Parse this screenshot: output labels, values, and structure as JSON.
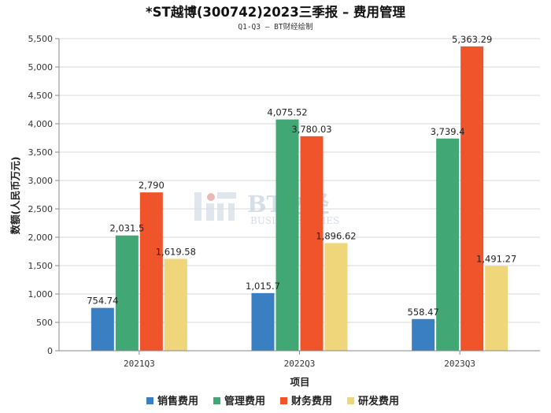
{
  "chart_data": {
    "type": "bar",
    "title": "*ST越博(300742)2023三季报 – 费用管理",
    "subtitle": "Q1-Q3 – BT财经绘制",
    "xlabel": "项目",
    "ylabel": "数额(人民币万元)",
    "ylim": [
      0,
      5500
    ],
    "ytick_step": 500,
    "ytick_labels": [
      "0",
      "500",
      "1,000",
      "1,500",
      "2,000",
      "2,500",
      "3,000",
      "3,500",
      "4,000",
      "4,500",
      "5,000",
      "5,500"
    ],
    "categories": [
      "2021Q3",
      "2022Q3",
      "2023Q3"
    ],
    "series": [
      {
        "name": "销售费用",
        "color": "#3a7fc1",
        "values": [
          754.74,
          1015.7,
          558.47
        ],
        "labels": [
          "754.74",
          "1,015.7",
          "558.47"
        ]
      },
      {
        "name": "管理费用",
        "color": "#41a875",
        "values": [
          2031.5,
          4075.52,
          3739.4
        ],
        "labels": [
          "2,031.5",
          "4,075.52",
          "3,739.4"
        ]
      },
      {
        "name": "财务费用",
        "color": "#f0542b",
        "values": [
          2790,
          3780.03,
          5363.29
        ],
        "labels": [
          "2,790",
          "3,780.03",
          "5,363.29"
        ]
      },
      {
        "name": "研发费用",
        "color": "#efd67a",
        "values": [
          1619.58,
          1896.62,
          1491.27
        ],
        "labels": [
          "1,619.58",
          "1,896.62",
          "1,491.27"
        ]
      }
    ],
    "gridlines": true,
    "legend_position": "bottom",
    "watermark": {
      "brand": "BT财经",
      "tagline": "BUSINESS TIMES"
    }
  }
}
